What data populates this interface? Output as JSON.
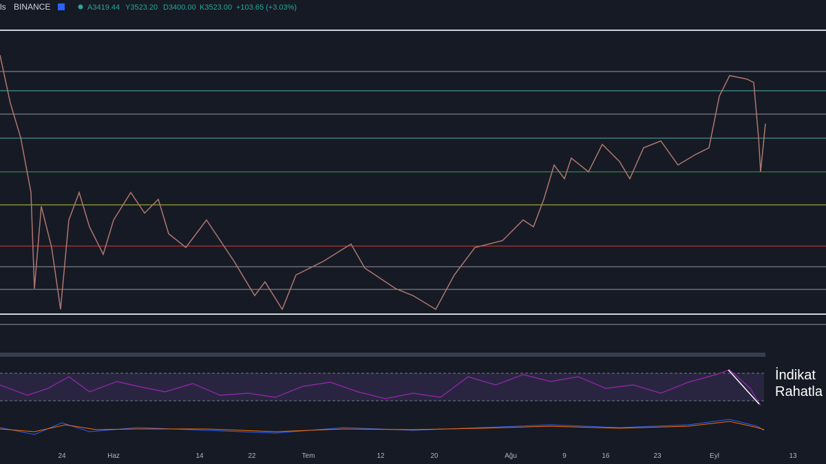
{
  "header": {
    "interval": "ls",
    "exchange": "BINANCE",
    "open": "A3419.44",
    "high": "Y3523.20",
    "low": "D3400.00",
    "close": "K3523.00",
    "change": "+103.65 (+3.03%)"
  },
  "x_axis": {
    "labels": [
      "24",
      "Haz",
      "14",
      "22",
      "Tem",
      "12",
      "20",
      "Ağu",
      "9",
      "16",
      "23",
      "Eyl",
      "13"
    ]
  },
  "annotation": {
    "lines": [
      "İndikat",
      "Rahatla"
    ]
  }
}
